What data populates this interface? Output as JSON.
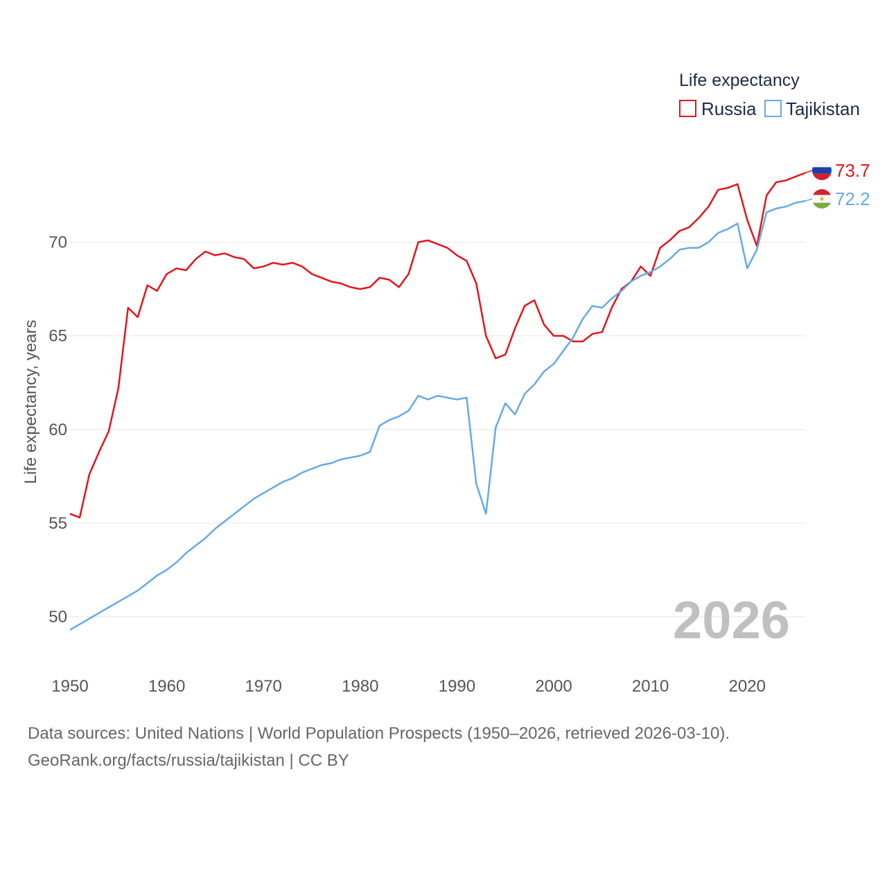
{
  "chart_data": {
    "type": "line",
    "ylabel": "Life expectancy, years",
    "xlabel": "",
    "xlim": [
      1950,
      2026
    ],
    "ylim": [
      48,
      75
    ],
    "xticks": [
      1950,
      1960,
      1970,
      1980,
      1990,
      2000,
      2010,
      2020
    ],
    "yticks": [
      50,
      55,
      60,
      65,
      70
    ],
    "legend_title": "Life expectancy",
    "current_year": "2026",
    "series": [
      {
        "name": "Russia",
        "color": "#e3141b",
        "end_label": "73.7",
        "flag": "russia-flag",
        "values": [
          55.5,
          55.3,
          57.6,
          58.8,
          59.9,
          62.2,
          66.5,
          66.0,
          67.7,
          67.4,
          68.3,
          68.6,
          68.5,
          69.1,
          69.5,
          69.3,
          69.4,
          69.2,
          69.1,
          68.6,
          68.7,
          68.9,
          68.8,
          68.9,
          68.7,
          68.3,
          68.1,
          67.9,
          67.8,
          67.6,
          67.5,
          67.6,
          68.1,
          68.0,
          67.6,
          68.3,
          70.0,
          70.1,
          69.9,
          69.7,
          69.3,
          69.0,
          67.8,
          65.0,
          63.8,
          64.0,
          65.4,
          66.6,
          66.9,
          65.6,
          65.0,
          65.0,
          64.7,
          64.7,
          65.1,
          65.2,
          66.5,
          67.5,
          67.9,
          68.7,
          68.2,
          69.7,
          70.1,
          70.6,
          70.8,
          71.3,
          71.9,
          72.8,
          72.9,
          73.1,
          71.2,
          69.8,
          72.5,
          73.2,
          73.3,
          73.5,
          73.7
        ]
      },
      {
        "name": "Tajikistan",
        "color": "#66a9e8",
        "end_label": "72.2",
        "flag": "tajikistan-flag",
        "values": [
          49.3,
          49.6,
          49.9,
          50.2,
          50.5,
          50.8,
          51.1,
          51.4,
          51.8,
          52.2,
          52.5,
          52.9,
          53.4,
          53.8,
          54.2,
          54.7,
          55.1,
          55.5,
          55.9,
          56.3,
          56.6,
          56.9,
          57.2,
          57.4,
          57.7,
          57.9,
          58.1,
          58.2,
          58.4,
          58.5,
          58.6,
          58.8,
          60.2,
          60.5,
          60.7,
          61.0,
          61.8,
          61.6,
          61.8,
          61.7,
          61.6,
          61.7,
          57.1,
          55.5,
          60.1,
          61.4,
          60.8,
          61.9,
          62.4,
          63.1,
          63.5,
          64.2,
          64.9,
          65.9,
          66.6,
          66.5,
          67.0,
          67.4,
          67.9,
          68.2,
          68.4,
          68.7,
          69.1,
          69.6,
          69.7,
          69.7,
          70.0,
          70.5,
          70.7,
          71.0,
          68.6,
          69.6,
          71.6,
          71.8,
          71.9,
          72.1,
          72.2
        ]
      }
    ]
  },
  "footer": {
    "line1": "Data sources: United Nations | World Population Prospects (1950–2026, retrieved 2026-03-10).",
    "line2": "GeoRank.org/facts/russia/tajikistan | CC BY"
  }
}
